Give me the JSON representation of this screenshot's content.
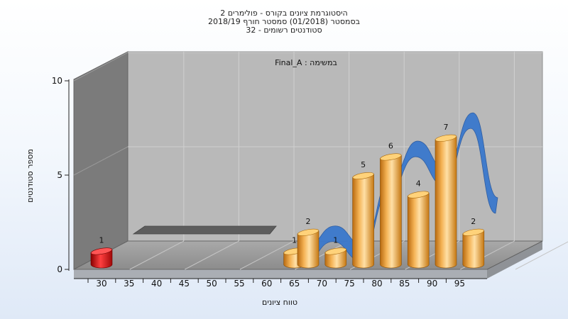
{
  "chart_data": {
    "type": "bar",
    "title_lines": [
      "היסטוגרמת ציונים בקורס - פולימרים 2",
      "בסמסטר  (01/2018)  סמסטר חורף  2018/19",
      "סטודנטים רשומים - 32"
    ],
    "annotation": "במשימה : Final_A",
    "xlabel": "טווח ציונים",
    "ylabel": "מספר סטודנטים",
    "x_ticks": [
      "30",
      "35",
      "40",
      "45",
      "50",
      "55",
      "60",
      "65",
      "70",
      "75",
      "80",
      "85",
      "90",
      "95"
    ],
    "y_ticks": [
      "0",
      "5",
      "10"
    ],
    "ylim": [
      0,
      10
    ],
    "grid": true,
    "bars": [
      {
        "x": 30,
        "value": 1,
        "label": "1",
        "color": "#e01818"
      },
      {
        "x": 65,
        "value": 1,
        "label": "1",
        "color": "#f0a030"
      },
      {
        "x": 67.5,
        "value": 2,
        "label": "2",
        "color": "#f0a030"
      },
      {
        "x": 72.5,
        "value": 1,
        "label": "1",
        "color": "#f0a030"
      },
      {
        "x": 77.5,
        "value": 5,
        "label": "5",
        "color": "#f0a030"
      },
      {
        "x": 82.5,
        "value": 6,
        "label": "6",
        "color": "#f0a030"
      },
      {
        "x": 87.5,
        "value": 4,
        "label": "4",
        "color": "#f0a030"
      },
      {
        "x": 92.5,
        "value": 7,
        "label": "7",
        "color": "#f0a030"
      },
      {
        "x": 97.5,
        "value": 2,
        "label": "2",
        "color": "#f0a030"
      }
    ],
    "curve_color": "#3a78cc"
  }
}
